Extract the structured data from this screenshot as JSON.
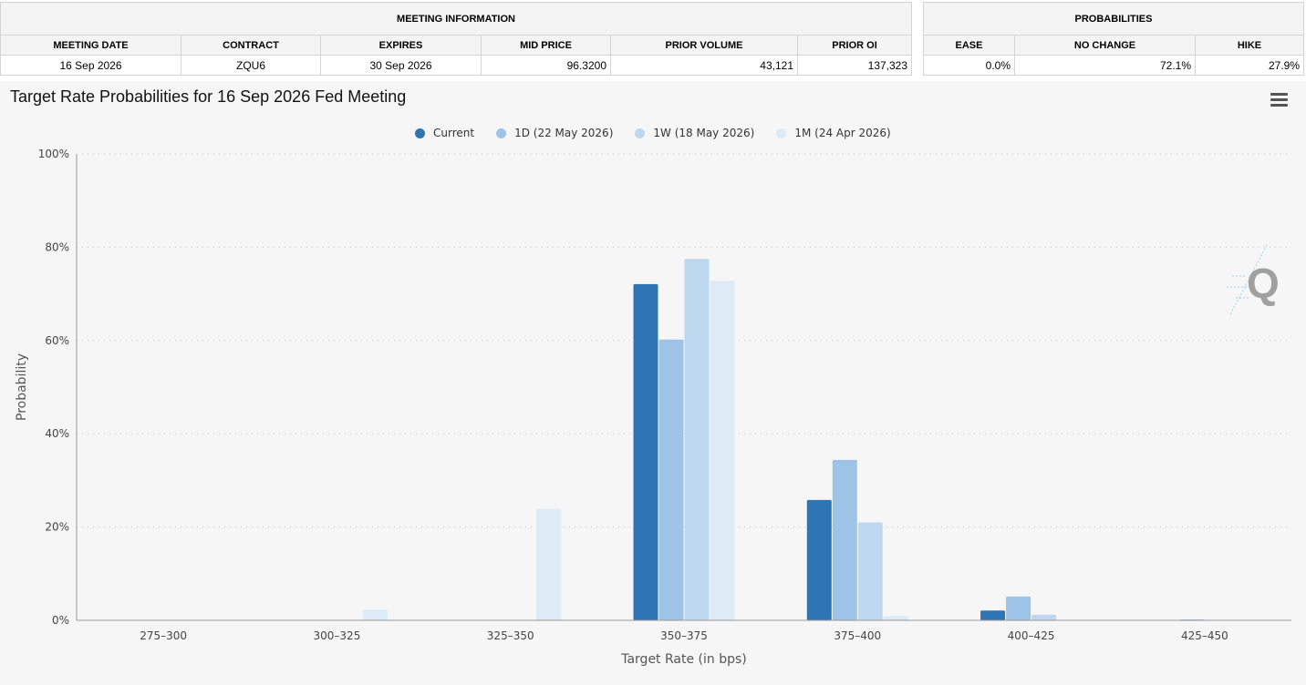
{
  "meeting_info": {
    "group_header": "MEETING INFORMATION",
    "columns": [
      "MEETING DATE",
      "CONTRACT",
      "EXPIRES",
      "MID PRICE",
      "PRIOR VOLUME",
      "PRIOR OI"
    ],
    "row": [
      "16 Sep 2026",
      "ZQU6",
      "30 Sep 2026",
      "96.3200",
      "43,121",
      "137,323"
    ]
  },
  "probabilities": {
    "group_header": "PROBABILITIES",
    "columns": [
      "EASE",
      "NO CHANGE",
      "HIKE"
    ],
    "row": [
      "0.0%",
      "72.1%",
      "27.9%"
    ]
  },
  "chart": {
    "title": "Target Rate Probabilities for 16 Sep 2026 Fed Meeting",
    "menu_icon": "hamburger-menu-icon",
    "watermark_icon": "q-logo-icon"
  },
  "chart_data": {
    "type": "bar",
    "title": "Target Rate Probabilities for 16 Sep 2026 Fed Meeting",
    "xlabel": "Target Rate (in bps)",
    "ylabel": "Probability",
    "ylim": [
      0,
      100
    ],
    "yticks": [
      "0%",
      "20%",
      "40%",
      "60%",
      "80%",
      "100%"
    ],
    "grid": true,
    "legend_position": "top-center",
    "categories": [
      "275-300",
      "300-325",
      "325-350",
      "350-375",
      "375-400",
      "400-425",
      "425-450"
    ],
    "series": [
      {
        "name": "Current",
        "color": "#2e75b6",
        "values": [
          0,
          0,
          0,
          72.1,
          25.8,
          2.1,
          0
        ]
      },
      {
        "name": "1D (22 May 2026)",
        "color": "#9dc3e6",
        "values": [
          0,
          0,
          0,
          60.2,
          34.4,
          5.1,
          0.2
        ]
      },
      {
        "name": "1W (18 May 2026)",
        "color": "#bdd7ee",
        "values": [
          0,
          0,
          0,
          77.5,
          21.0,
          1.2,
          0
        ]
      },
      {
        "name": "1M (24 Apr 2026)",
        "color": "#ddebf7",
        "values": [
          0,
          2.3,
          23.9,
          72.8,
          0.9,
          0,
          0
        ]
      }
    ]
  }
}
